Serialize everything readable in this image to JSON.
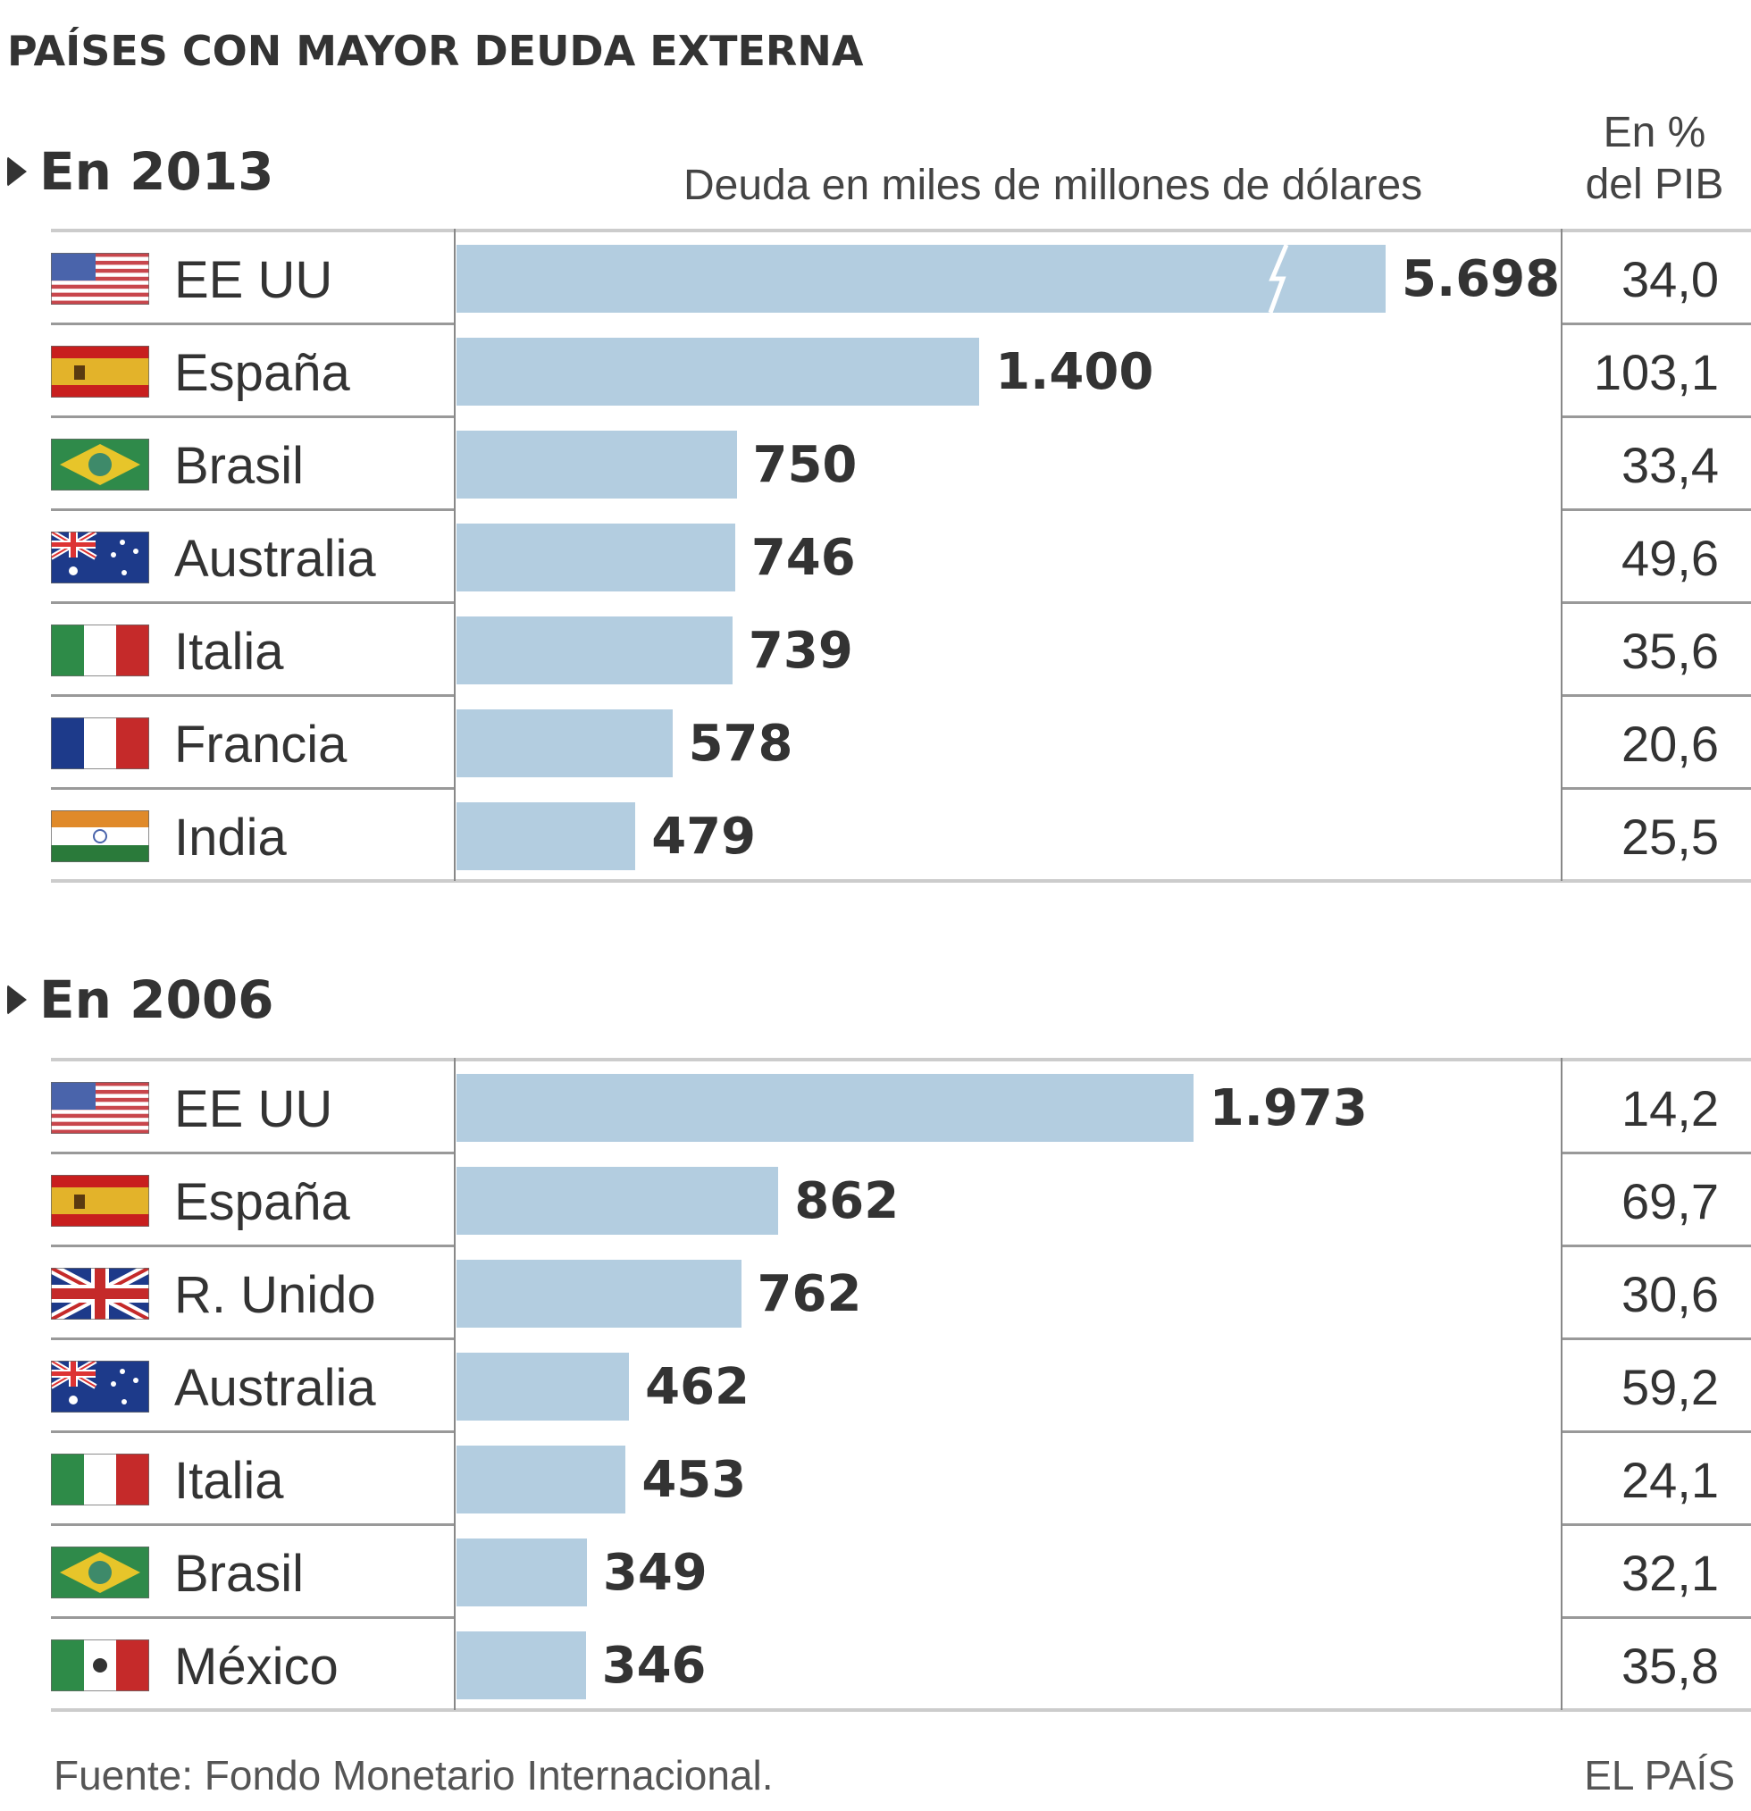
{
  "title": "PAÍSES CON MAYOR DEUDA EXTERNA",
  "unit_label": "Deuda en miles de millones de dólares",
  "pct_header_line1": "En %",
  "pct_header_line2": "del PIB",
  "footer": {
    "source": "Fuente: Fondo Monetario Internacional.",
    "brand": "EL PAÍS"
  },
  "colors": {
    "bar": "#b3cde0",
    "text": "#333333"
  },
  "chart_data": [
    {
      "type": "bar",
      "title": "En 2013",
      "xlabel": "Deuda en miles de millones de dólares",
      "ylabel": "",
      "axis_break_on_first_bar": true,
      "categories": [
        "EE UU",
        "España",
        "Brasil",
        "Australia",
        "Italia",
        "Francia",
        "India"
      ],
      "flags": [
        "us",
        "es",
        "br",
        "au",
        "it",
        "fr",
        "in"
      ],
      "values": [
        5698,
        1400,
        750,
        746,
        739,
        578,
        479
      ],
      "value_labels": [
        "5.698",
        "1.400",
        "750",
        "746",
        "739",
        "578",
        "479"
      ],
      "pct_gdp": [
        "34,0",
        "103,1",
        "33,4",
        "49,6",
        "35,6",
        "20,6",
        "25,5"
      ]
    },
    {
      "type": "bar",
      "title": "En 2006",
      "xlabel": "Deuda en miles de millones de dólares",
      "ylabel": "",
      "axis_break_on_first_bar": false,
      "categories": [
        "EE UU",
        "España",
        "R. Unido",
        "Australia",
        "Italia",
        "Brasil",
        "México"
      ],
      "flags": [
        "us",
        "es",
        "gb",
        "au",
        "it",
        "br",
        "mx"
      ],
      "values": [
        1973,
        862,
        762,
        462,
        453,
        349,
        346
      ],
      "value_labels": [
        "1.973",
        "862",
        "762",
        "462",
        "453",
        "349",
        "346"
      ],
      "pct_gdp": [
        "14,2",
        "69,7",
        "30,6",
        "59,2",
        "24,1",
        "32,1",
        "35,8"
      ]
    }
  ]
}
